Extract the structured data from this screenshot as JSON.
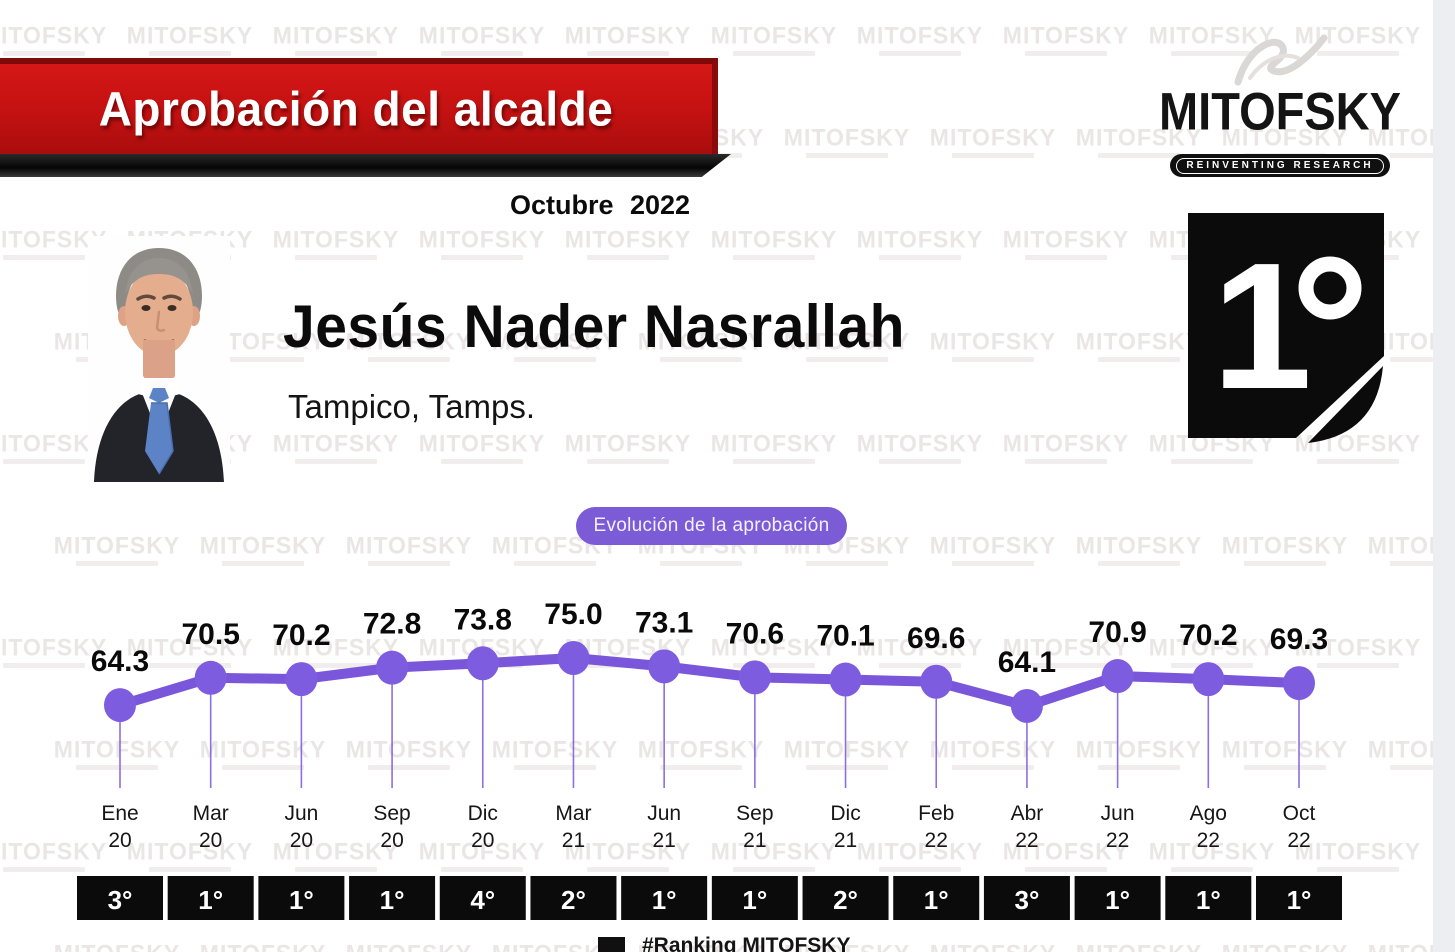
{
  "banner": {
    "title": "Aprobación del alcalde"
  },
  "date_label": "Octubre 2022",
  "brand": {
    "name": "MITOFSKY",
    "tagline": "REINVENTING RESEARCH"
  },
  "subject": {
    "name": "Jesús Nader Nasrallah",
    "location": "Tampico, Tamps.",
    "current_rank": "1°"
  },
  "pill_label": "Evolución de la aprobación",
  "footer_legend": "#Ranking MITOFSKY",
  "watermark_text": "MITOFSKY",
  "colors": {
    "banner_red": "#c31111",
    "line_purple": "#7a57da",
    "pill_purple": "#7b5cd6",
    "box_black": "#0b0b0b"
  },
  "chart_data": {
    "type": "line",
    "title": "Evolución de la aprobación",
    "categories": [
      "Ene 20",
      "Mar 20",
      "Jun 20",
      "Sep 20",
      "Dic 20",
      "Mar 21",
      "Jun 21",
      "Sep 21",
      "Dic 21",
      "Feb 22",
      "Abr 22",
      "Jun 22",
      "Ago 22",
      "Oct 22"
    ],
    "series": [
      {
        "name": "Aprobación del alcalde (%)",
        "values": [
          64.3,
          70.5,
          70.2,
          72.8,
          73.8,
          75.0,
          73.1,
          70.6,
          70.1,
          69.6,
          64.1,
          70.9,
          70.2,
          69.3
        ]
      }
    ],
    "ranks": [
      "3°",
      "1°",
      "1°",
      "1°",
      "4°",
      "2°",
      "1°",
      "1°",
      "2°",
      "1°",
      "3°",
      "1°",
      "1°",
      "1°"
    ],
    "ylim": [
      60,
      80
    ],
    "grid": false,
    "legend_position": "none",
    "value_labels": true,
    "line_color": "#7a57da"
  }
}
